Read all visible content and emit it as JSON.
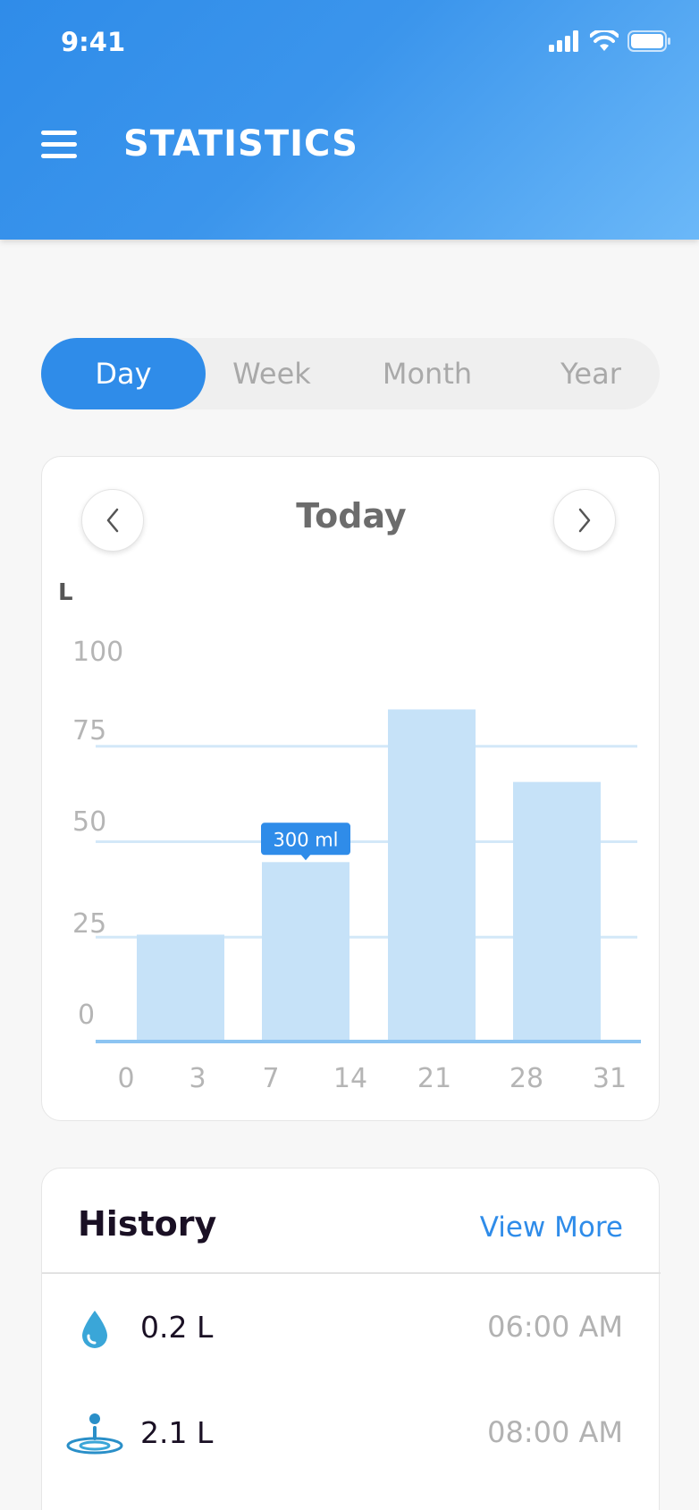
{
  "status_bar": {
    "time": "9:41"
  },
  "header": {
    "title": "STATISTICS"
  },
  "tabs": [
    {
      "label": "Day",
      "active": true
    },
    {
      "label": "Week",
      "active": false
    },
    {
      "label": "Month",
      "active": false
    },
    {
      "label": "Year",
      "active": false
    }
  ],
  "chart_card": {
    "period_label": "Today",
    "prev_icon": "chevron-left-icon",
    "next_icon": "chevron-right-icon"
  },
  "chart_data": {
    "type": "bar",
    "ylabel": "L",
    "ylim": [
      0,
      100
    ],
    "yticks": [
      "100",
      "75",
      "50",
      "25",
      "0"
    ],
    "xticks": [
      "0",
      "3",
      "7",
      "14",
      "21",
      "28",
      "31"
    ],
    "bars": [
      {
        "value": 28
      },
      {
        "value": 47,
        "tooltip": "300 ml"
      },
      {
        "value": 87
      },
      {
        "value": 68
      }
    ],
    "grid": true,
    "colors": {
      "bar": "#c6e2f8",
      "grid": "#d3e8f8",
      "axis": "#8cc4f2",
      "tooltip": "#2f8ce9"
    }
  },
  "history": {
    "title": "History",
    "view_more": "View More",
    "items": [
      {
        "amount": "0.2 L",
        "time": "06:00 AM",
        "icon": "water-drop-icon"
      },
      {
        "amount": "2.1 L",
        "time": "08:00 AM",
        "icon": "water-splash-icon"
      }
    ]
  },
  "colors": {
    "accent": "#2f8ce9",
    "header_gradient_end": "#6bb8f8"
  }
}
